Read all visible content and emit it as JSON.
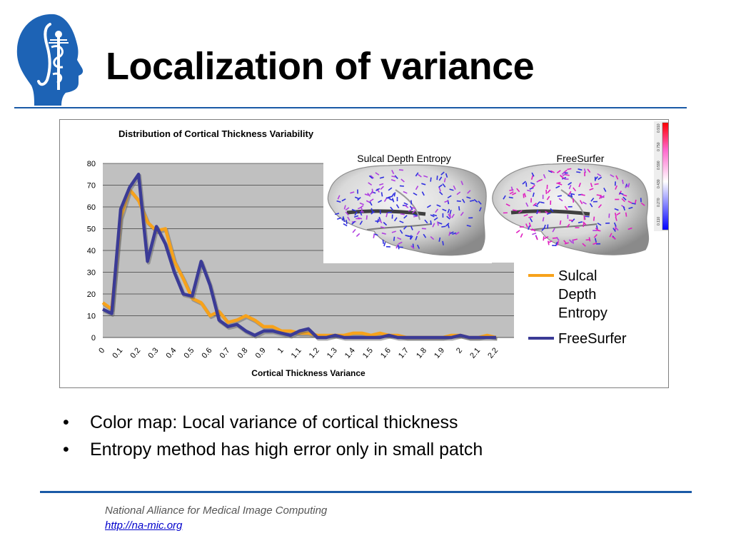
{
  "slide": {
    "title": "Localization of variance",
    "bullets": [
      "Color map: Local variance of cortical thickness",
      "Entropy method has high error only in small patch"
    ],
    "footer_org": "National Alliance for Medical Image Computing",
    "footer_url": "http://na-mic.org",
    "accent_color": "#1a5aa6"
  },
  "images": {
    "left_label": "Sulcal Depth Entropy",
    "right_label": "FreeSurfer",
    "colorbar_ticks": [
      "0.110",
      "0.270",
      "0.430",
      "0.590",
      "0.750",
      "0.910"
    ]
  },
  "chart_data": {
    "type": "line",
    "title": "Distribution of Cortical Thickness Variability",
    "xlabel": "Cortical Thickness Variance",
    "ylabel": "",
    "ylim": [
      0,
      80
    ],
    "yticks": [
      0,
      10,
      20,
      30,
      40,
      50,
      60,
      70,
      80
    ],
    "x_tick_labels": [
      "0",
      "0.1",
      "0.2",
      "0.3",
      "0.4",
      "0.5",
      "0.6",
      "0.7",
      "0.8",
      "0.9",
      "1",
      "1.1",
      "1.2",
      "1.3",
      "1.4",
      "1.5",
      "1.6",
      "1.7",
      "1.8",
      "1.9",
      "2",
      "2.1",
      "2.2"
    ],
    "x": [
      0,
      0.05,
      0.1,
      0.15,
      0.2,
      0.25,
      0.3,
      0.35,
      0.4,
      0.45,
      0.5,
      0.55,
      0.6,
      0.65,
      0.7,
      0.75,
      0.8,
      0.85,
      0.9,
      0.95,
      1,
      1.05,
      1.1,
      1.15,
      1.2,
      1.25,
      1.3,
      1.35,
      1.4,
      1.45,
      1.5,
      1.55,
      1.6,
      1.65,
      1.7,
      1.75,
      1.8,
      1.85,
      1.9,
      1.95,
      2,
      2.05,
      2.1,
      2.15,
      2.2
    ],
    "grid": true,
    "legend_position": "right",
    "series": [
      {
        "name": "Sulcal Depth Entropy",
        "color": "#f7a21b",
        "values": [
          16,
          13,
          55,
          68,
          63,
          53,
          49,
          50,
          35,
          27,
          18,
          16,
          10,
          12,
          7,
          8,
          10,
          8,
          5,
          5,
          3,
          3,
          2,
          2,
          1,
          1,
          1,
          1,
          2,
          2,
          1,
          2,
          1,
          1,
          0,
          0,
          0,
          0,
          0,
          1,
          1,
          0,
          0,
          1,
          0
        ]
      },
      {
        "name": "FreeSurfer",
        "color": "#3b3b96",
        "values": [
          13,
          11,
          59,
          69,
          75,
          35,
          51,
          43,
          30,
          20,
          19,
          35,
          24,
          8,
          5,
          6,
          3,
          1,
          3,
          3,
          2,
          1,
          3,
          4,
          0,
          0,
          1,
          0,
          0,
          0,
          0,
          0,
          1,
          0,
          0,
          0,
          0,
          0,
          0,
          0,
          1,
          0,
          0,
          0,
          0
        ]
      }
    ]
  }
}
